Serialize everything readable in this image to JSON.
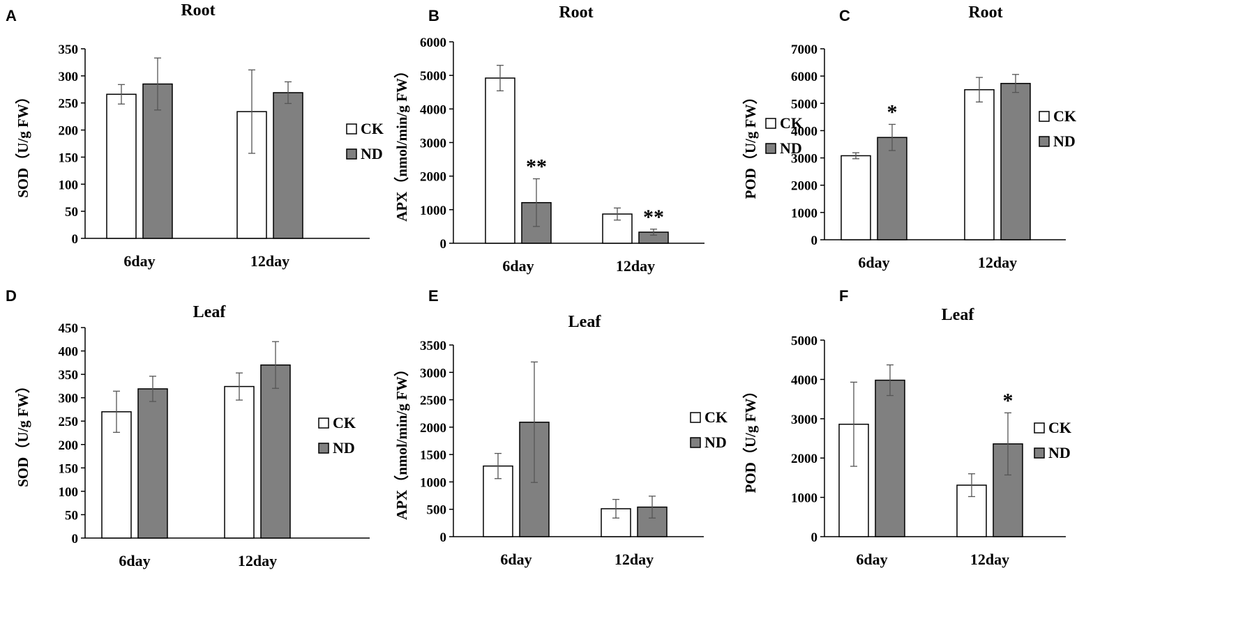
{
  "colors": {
    "ck_fill": "#ffffff",
    "nd_fill": "#808080",
    "stroke": "#000000",
    "error_bar": "#555555"
  },
  "chart_data": [
    {
      "panel": "A",
      "type": "bar",
      "title": "Root",
      "ylabel": "SOD（U/g FW）",
      "categories": [
        "6day",
        "12day"
      ],
      "ylim": [
        0,
        350
      ],
      "yticks": [
        0,
        50,
        100,
        150,
        200,
        250,
        300,
        350
      ],
      "series": [
        {
          "name": "CK",
          "values": [
            266,
            234
          ],
          "errors": [
            18,
            77
          ],
          "annotations": [
            "",
            ""
          ]
        },
        {
          "name": "ND",
          "values": [
            285,
            269
          ],
          "errors": [
            48,
            20
          ],
          "annotations": [
            "",
            ""
          ]
        }
      ],
      "legend": "right"
    },
    {
      "panel": "B",
      "type": "bar",
      "title": "Root",
      "ylabel": "APX（nmol/min/g FW）",
      "categories": [
        "6day",
        "12day"
      ],
      "ylim": [
        0,
        6000
      ],
      "yticks": [
        0,
        1000,
        2000,
        3000,
        4000,
        5000,
        6000
      ],
      "series": [
        {
          "name": "CK",
          "values": [
            4920,
            870
          ],
          "errors": [
            380,
            180
          ],
          "annotations": [
            "",
            ""
          ]
        },
        {
          "name": "ND",
          "values": [
            1210,
            330
          ],
          "errors": [
            710,
            90
          ],
          "annotations": [
            "**",
            "**"
          ]
        }
      ],
      "legend": "right"
    },
    {
      "panel": "C",
      "type": "bar",
      "title": "Root",
      "ylabel": "POD（U/g FW）",
      "categories": [
        "6day",
        "12day"
      ],
      "ylim": [
        0,
        7000
      ],
      "yticks": [
        0,
        1000,
        2000,
        3000,
        4000,
        5000,
        6000,
        7000
      ],
      "series": [
        {
          "name": "CK",
          "values": [
            3080,
            5500
          ],
          "errors": [
            110,
            450
          ],
          "annotations": [
            "",
            ""
          ]
        },
        {
          "name": "ND",
          "values": [
            3750,
            5730
          ],
          "errors": [
            480,
            330
          ],
          "annotations": [
            "*",
            ""
          ]
        }
      ],
      "legend": "right"
    },
    {
      "panel": "D",
      "type": "bar",
      "title": "Leaf",
      "ylabel": "SOD（U/g FW）",
      "categories": [
        "6day",
        "12day"
      ],
      "ylim": [
        0,
        450
      ],
      "yticks": [
        0,
        50,
        100,
        150,
        200,
        250,
        300,
        350,
        400,
        450
      ],
      "series": [
        {
          "name": "CK",
          "values": [
            270,
            324
          ],
          "errors": [
            44,
            29
          ],
          "annotations": [
            "",
            ""
          ]
        },
        {
          "name": "ND",
          "values": [
            319,
            370
          ],
          "errors": [
            27,
            50
          ],
          "annotations": [
            "",
            ""
          ]
        }
      ],
      "legend": "right"
    },
    {
      "panel": "E",
      "type": "bar",
      "title": "Leaf",
      "ylabel": "APX（nmol/min/g FW）",
      "categories": [
        "6day",
        "12day"
      ],
      "ylim": [
        0,
        3500
      ],
      "yticks": [
        0,
        500,
        1000,
        1500,
        2000,
        2500,
        3000,
        3500
      ],
      "series": [
        {
          "name": "CK",
          "values": [
            1290,
            510
          ],
          "errors": [
            230,
            170
          ],
          "annotations": [
            "",
            ""
          ]
        },
        {
          "name": "ND",
          "values": [
            2090,
            540
          ],
          "errors": [
            1100,
            200
          ],
          "annotations": [
            "",
            ""
          ]
        }
      ],
      "legend": "right"
    },
    {
      "panel": "F",
      "type": "bar",
      "title": "Leaf",
      "ylabel": "POD（U/g FW）",
      "categories": [
        "6day",
        "12day"
      ],
      "ylim": [
        0,
        5000
      ],
      "yticks": [
        0,
        1000,
        2000,
        3000,
        4000,
        5000
      ],
      "series": [
        {
          "name": "CK",
          "values": [
            2860,
            1310
          ],
          "errors": [
            1070,
            290
          ],
          "annotations": [
            "",
            ""
          ]
        },
        {
          "name": "ND",
          "values": [
            3980,
            2360
          ],
          "errors": [
            390,
            790
          ],
          "annotations": [
            "",
            "*"
          ]
        }
      ],
      "legend": "right"
    }
  ]
}
